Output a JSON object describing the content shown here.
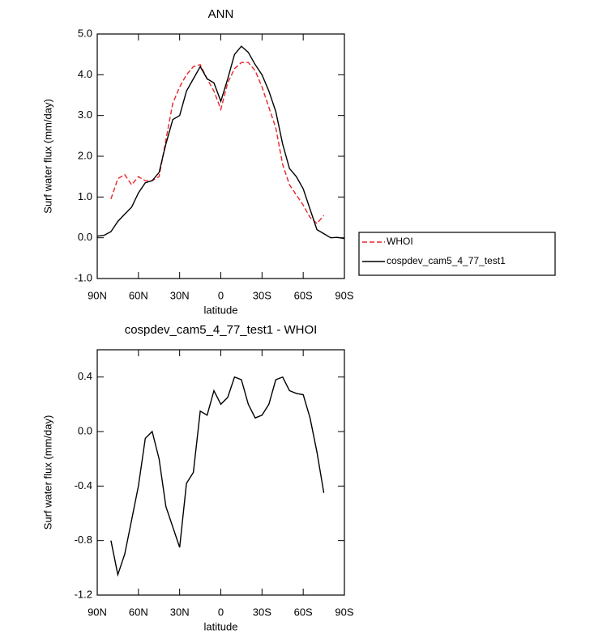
{
  "chart_data": [
    {
      "type": "line",
      "title": "ANN",
      "xlabel": "latitude",
      "ylabel": "Surf water flux (mm/day)",
      "x": [
        90,
        85,
        80,
        75,
        70,
        65,
        60,
        55,
        50,
        45,
        40,
        35,
        30,
        25,
        20,
        15,
        10,
        5,
        0,
        -5,
        -10,
        -15,
        -20,
        -25,
        -30,
        -35,
        -40,
        -45,
        -50,
        -55,
        -60,
        -65,
        -70,
        -75,
        -80,
        -85,
        -90
      ],
      "series": [
        {
          "name": "WHOI",
          "color": "#e8262b",
          "line_style": "dashed",
          "values": [
            null,
            null,
            0.95,
            1.45,
            1.55,
            1.3,
            1.5,
            1.4,
            1.4,
            1.5,
            2.4,
            3.3,
            3.7,
            4.0,
            4.2,
            4.25,
            3.9,
            3.6,
            3.15,
            3.8,
            4.15,
            4.3,
            4.3,
            4.1,
            3.7,
            3.2,
            2.7,
            1.8,
            1.3,
            1.05,
            0.8,
            0.5,
            0.35,
            0.55,
            null,
            null,
            null
          ]
        },
        {
          "name": "cospdev_cam5_4_77_test1",
          "color": "#000000",
          "line_style": "solid",
          "values": [
            0.04,
            0.06,
            0.15,
            0.4,
            0.58,
            0.75,
            1.1,
            1.35,
            1.4,
            1.6,
            2.3,
            2.9,
            3.0,
            3.6,
            3.9,
            4.2,
            3.9,
            3.8,
            3.35,
            3.9,
            4.5,
            4.7,
            4.55,
            4.25,
            4.0,
            3.6,
            3.1,
            2.3,
            1.7,
            1.5,
            1.2,
            0.7,
            0.2,
            0.1,
            0.0,
            0.01,
            -0.02
          ]
        }
      ],
      "xlim": [
        90,
        -90
      ],
      "xticks": [
        {
          "value": 90,
          "label": "90N"
        },
        {
          "value": 60,
          "label": "60N"
        },
        {
          "value": 30,
          "label": "30N"
        },
        0,
        {
          "value": -30,
          "label": "30S"
        },
        {
          "value": -60,
          "label": "60S"
        },
        {
          "value": -90,
          "label": "90S"
        }
      ],
      "ylim": [
        -1,
        5
      ],
      "yticks": [
        {
          "value": -1,
          "label": "-1.0"
        },
        {
          "value": 0,
          "label": "0.0"
        },
        {
          "value": 1,
          "label": "1.0"
        },
        {
          "value": 2,
          "label": "2.0"
        },
        {
          "value": 3,
          "label": "3.0"
        },
        {
          "value": 4,
          "label": "4.0"
        },
        {
          "value": 5,
          "label": "5.0"
        }
      ],
      "legend": "outside-right"
    },
    {
      "type": "line",
      "title": "cospdev_cam5_4_77_test1 - WHOI",
      "xlabel": "latitude",
      "ylabel": "Surf water flux (mm/day)",
      "x": [
        90,
        85,
        80,
        75,
        70,
        65,
        60,
        55,
        50,
        45,
        40,
        35,
        30,
        25,
        20,
        15,
        10,
        5,
        0,
        -5,
        -10,
        -15,
        -20,
        -25,
        -30,
        -35,
        -40,
        -45,
        -50,
        -55,
        -60,
        -65,
        -70,
        -75,
        -80,
        -85,
        -90
      ],
      "color": "#000000",
      "values": [
        null,
        null,
        -0.8,
        -1.05,
        -0.9,
        -0.65,
        -0.4,
        -0.05,
        0.0,
        -0.2,
        -0.55,
        -0.7,
        -0.85,
        -0.38,
        -0.3,
        0.15,
        0.12,
        0.3,
        0.2,
        0.25,
        0.4,
        0.38,
        0.2,
        0.1,
        0.12,
        0.2,
        0.38,
        0.4,
        0.3,
        0.28,
        0.27,
        0.1,
        -0.15,
        -0.45,
        null,
        null,
        null
      ],
      "xlim": [
        90,
        -90
      ],
      "xticks": [
        {
          "value": 90,
          "label": "90N"
        },
        {
          "value": 60,
          "label": "60N"
        },
        {
          "value": 30,
          "label": "30N"
        },
        0,
        {
          "value": -30,
          "label": "30S"
        },
        {
          "value": -60,
          "label": "60S"
        },
        {
          "value": -90,
          "label": "90S"
        }
      ],
      "ylim": [
        -1.2,
        0.6
      ],
      "yticks": [
        -1.2,
        -0.8,
        -0.4,
        {
          "value": 0,
          "label": "0.0"
        },
        0.4
      ]
    }
  ]
}
